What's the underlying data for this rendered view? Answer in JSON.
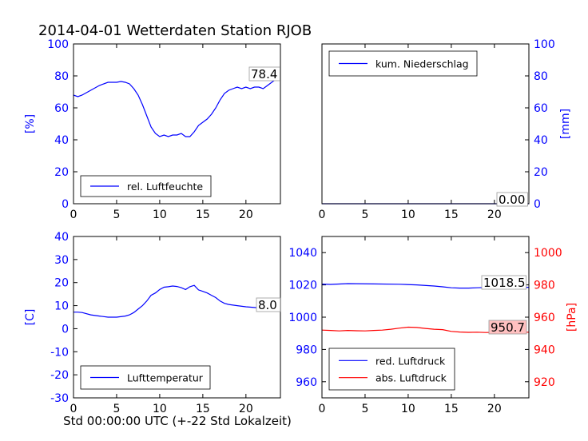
{
  "figure": {
    "title": "2014-04-01 Wetterdaten Station RJOB",
    "xlabel": "Std 00:00:00 UTC (+-22 Std Lokalzeit)"
  },
  "colors": {
    "blue": "#0000ff",
    "red": "#ff0000",
    "black": "#000000",
    "pink_box": "#ffc0c0"
  },
  "chart_data": [
    {
      "type": "line",
      "panel": "top-left",
      "ylabel": "[%]",
      "xlim": [
        0,
        24
      ],
      "ylim": [
        0,
        100
      ],
      "xticks": [
        0,
        5,
        10,
        15,
        20
      ],
      "yticks": [
        0,
        20,
        40,
        60,
        80,
        100
      ],
      "legend": {
        "position": "lower-left",
        "entries": [
          "rel. Luftfeuchte"
        ]
      },
      "last_value_label": "78.4",
      "series": [
        {
          "name": "rel. Luftfeuchte",
          "color": "#0000ff",
          "x": [
            0,
            0.5,
            1,
            2,
            3,
            4,
            5,
            5.5,
            6,
            6.5,
            7,
            7.5,
            8,
            8.5,
            9,
            9.5,
            10,
            10.5,
            11,
            11.5,
            12,
            12.5,
            13,
            13.5,
            14,
            14.5,
            15,
            15.5,
            16,
            16.5,
            17,
            17.5,
            18,
            18.5,
            19,
            19.5,
            20,
            20.5,
            21,
            21.5,
            22,
            22.5,
            23,
            23.5,
            24
          ],
          "y": [
            68,
            67,
            68,
            71,
            74,
            76,
            76,
            76.5,
            76,
            75,
            72,
            68,
            62,
            55,
            48,
            44,
            42,
            43,
            42,
            43,
            43,
            44,
            42,
            42,
            45,
            49,
            51,
            53,
            56,
            60,
            65,
            69,
            71,
            72,
            73,
            72,
            73,
            72,
            73,
            73,
            72,
            74,
            76,
            78,
            78.4
          ]
        }
      ]
    },
    {
      "type": "line",
      "panel": "top-right",
      "ylabel": "[mm]",
      "xlim": [
        0,
        24
      ],
      "ylim": [
        0,
        100
      ],
      "xticks": [
        0,
        5,
        10,
        15,
        20
      ],
      "yticks": [
        0,
        20,
        40,
        60,
        80,
        100
      ],
      "legend": {
        "position": "upper-left",
        "entries": [
          "kum. Niederschlag"
        ]
      },
      "last_value_label": "0.00",
      "series": [
        {
          "name": "kum. Niederschlag",
          "color": "#0000ff",
          "x": [
            0,
            24
          ],
          "y": [
            0,
            0
          ]
        }
      ]
    },
    {
      "type": "line",
      "panel": "bottom-left",
      "ylabel": "[C]",
      "xlim": [
        0,
        24
      ],
      "ylim": [
        -30,
        40
      ],
      "xticks": [
        0,
        5,
        10,
        15,
        20
      ],
      "yticks": [
        -30,
        -20,
        -10,
        0,
        10,
        20,
        30,
        40
      ],
      "legend": {
        "position": "lower-left",
        "entries": [
          "Lufttemperatur"
        ]
      },
      "last_value_label": "8.0",
      "series": [
        {
          "name": "Lufttemperatur",
          "color": "#0000ff",
          "x": [
            0,
            0.5,
            1,
            2,
            3,
            4,
            5,
            6,
            6.5,
            7,
            7.5,
            8,
            8.5,
            9,
            9.5,
            10,
            10.5,
            11,
            11.5,
            12,
            12.5,
            13,
            13.5,
            14,
            14.5,
            15,
            15.5,
            16,
            16.5,
            17,
            17.5,
            18,
            19,
            20,
            21,
            22,
            23,
            24
          ],
          "y": [
            7.2,
            7.2,
            7,
            6,
            5.5,
            5,
            5,
            5.5,
            6,
            7,
            8.5,
            10,
            12,
            14.5,
            15.5,
            17,
            18,
            18.2,
            18.5,
            18.3,
            17.8,
            17,
            18.2,
            18.8,
            16.8,
            16.2,
            15.5,
            14.5,
            13.5,
            12,
            11,
            10.5,
            10,
            9.5,
            9.2,
            8.8,
            8.4,
            8.0
          ]
        }
      ]
    },
    {
      "type": "line",
      "panel": "bottom-right",
      "ylabel": "[hPa]",
      "xlim": [
        0,
        24
      ],
      "ylim_left": [
        950,
        1050
      ],
      "ylim_right": [
        910,
        1010
      ],
      "xticks": [
        0,
        5,
        10,
        15,
        20
      ],
      "yticks_left": [
        960,
        980,
        1000,
        1020,
        1040
      ],
      "yticks_right": [
        920,
        940,
        960,
        980,
        1000
      ],
      "legend": {
        "position": "lower-left",
        "entries": [
          "red. Luftdruck",
          "abs. Luftdruck"
        ]
      },
      "last_value_labels": [
        "1018.5",
        "950.7"
      ],
      "series": [
        {
          "name": "red. Luftdruck",
          "color": "#0000ff",
          "axis": "left",
          "x": [
            0,
            1,
            3,
            6,
            9,
            11,
            13,
            14,
            15,
            16,
            17,
            18,
            19,
            20,
            21,
            22,
            23,
            24
          ],
          "y": [
            1020.5,
            1020.3,
            1020.8,
            1020.6,
            1020.4,
            1020,
            1019.3,
            1018.8,
            1018.2,
            1018,
            1018,
            1018.2,
            1018.4,
            1018.5,
            1018.3,
            1018.4,
            1018.5,
            1018.5
          ]
        },
        {
          "name": "abs. Luftdruck",
          "color": "#ff0000",
          "axis": "right",
          "x": [
            0,
            1,
            2,
            3,
            4,
            5,
            6,
            7,
            8,
            9,
            10,
            11,
            12,
            13,
            14,
            15,
            16,
            17,
            18,
            19,
            20,
            21,
            22,
            23,
            24
          ],
          "y": [
            952,
            951.8,
            951.5,
            951.8,
            951.6,
            951.5,
            951.8,
            952,
            952.5,
            953.2,
            953.8,
            953.6,
            953,
            952.5,
            952.3,
            951.2,
            950.8,
            950.6,
            950.7,
            950.5,
            950.6,
            950.7,
            950.7,
            950.6,
            950.7
          ]
        }
      ]
    }
  ]
}
